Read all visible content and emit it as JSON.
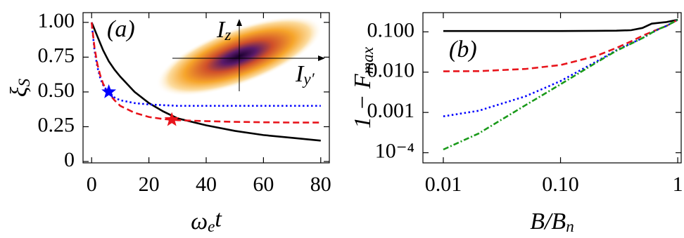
{
  "chart_data": [
    {
      "type": "line",
      "panel_label": "(a)",
      "xlabel": [
        {
          "text": "ω"
        },
        {
          "text": "e",
          "sub": true
        },
        {
          "text": "t"
        }
      ],
      "ylabel": [
        {
          "text": "ξ"
        },
        {
          "text": "S",
          "sub": true
        }
      ],
      "xlim": [
        -3,
        83
      ],
      "ylim": [
        -0.01,
        1.07
      ],
      "xticks": [
        0,
        20,
        40,
        60,
        80
      ],
      "yticks": [
        0,
        0.25,
        {
          "value": 0.5,
          "label": "0.50"
        },
        0.75,
        {
          "value": 1,
          "label": "1.00"
        }
      ],
      "x": [
        0,
        1,
        2,
        3,
        4,
        5,
        6,
        8,
        10,
        15,
        20,
        25,
        30,
        40,
        50,
        60,
        70,
        80
      ],
      "series": [
        {
          "color": "#000000",
          "dash": "solid",
          "values": [
            1.0,
            0.95,
            0.9,
            0.85,
            0.8,
            0.76,
            0.72,
            0.66,
            0.61,
            0.5,
            0.42,
            0.36,
            0.31,
            0.26,
            0.22,
            0.19,
            0.17,
            0.15
          ]
        },
        {
          "color": "#0000ff",
          "dash": "dotted",
          "values": [
            1.0,
            0.8,
            0.68,
            0.6,
            0.55,
            0.52,
            0.5,
            0.46,
            0.44,
            0.42,
            0.41,
            0.405,
            0.4,
            0.4,
            0.4,
            0.4,
            0.4,
            0.4
          ]
        },
        {
          "color": "#e8141b",
          "dash": "dashed",
          "values": [
            1.0,
            0.82,
            0.7,
            0.62,
            0.56,
            0.52,
            0.49,
            0.44,
            0.4,
            0.35,
            0.32,
            0.305,
            0.297,
            0.29,
            0.285,
            0.282,
            0.28,
            0.28
          ]
        }
      ],
      "markers": [
        {
          "x": 6,
          "y": 0.5,
          "color": "#0000ff"
        },
        {
          "x": 28,
          "y": 0.3,
          "color": "#e8141b"
        }
      ],
      "inset": {
        "y_label": [
          {
            "text": "I"
          },
          {
            "text": "z",
            "sub": true
          }
        ],
        "x_label": [
          {
            "text": "I"
          },
          {
            "text": "y′",
            "sub": true
          }
        ]
      }
    },
    {
      "type": "line",
      "panel_label": "(b)",
      "log_x": true,
      "log_y": true,
      "xlabel": [
        {
          "text": "B/B"
        },
        {
          "text": "n",
          "sub": true
        }
      ],
      "ylabel": [
        {
          "text": "1 − F"
        },
        {
          "text": "max",
          "sub": true
        }
      ],
      "xlim": [
        0.0067,
        1.07
      ],
      "ylim": [
        5.6e-05,
        0.3
      ],
      "xticks": [
        0.01,
        {
          "value": 0.1,
          "label": "0.10"
        },
        1
      ],
      "yticks": [
        {
          "value": 0.0001,
          "label": "10⁻⁴"
        },
        0.001,
        {
          "value": 0.01,
          "label": "0.010"
        },
        {
          "value": 0.1,
          "label": "0.100"
        }
      ],
      "x": [
        0.01,
        0.02,
        0.05,
        0.1,
        0.2,
        0.3,
        0.4,
        0.5,
        0.6,
        0.7,
        0.8,
        1.0
      ],
      "series": [
        {
          "color": "#000000",
          "dash": "solid",
          "values": [
            0.105,
            0.105,
            0.105,
            0.105,
            0.106,
            0.107,
            0.11,
            0.125,
            0.16,
            0.168,
            0.175,
            0.2
          ]
        },
        {
          "color": "#e8141b",
          "dash": "dashed",
          "values": [
            0.0105,
            0.0106,
            0.012,
            0.015,
            0.025,
            0.04,
            0.058,
            0.08,
            0.1,
            0.12,
            0.14,
            0.2
          ]
        },
        {
          "color": "#0000ff",
          "dash": "dotted",
          "values": [
            0.0008,
            0.0011,
            0.0025,
            0.006,
            0.018,
            0.035,
            0.052,
            0.07,
            0.095,
            0.12,
            0.14,
            0.2
          ]
        },
        {
          "color": "#1a9a1a",
          "dash": "dashdot",
          "values": [
            0.00012,
            0.0003,
            0.0015,
            0.005,
            0.017,
            0.034,
            0.051,
            0.07,
            0.095,
            0.12,
            0.14,
            0.2
          ]
        }
      ]
    }
  ]
}
